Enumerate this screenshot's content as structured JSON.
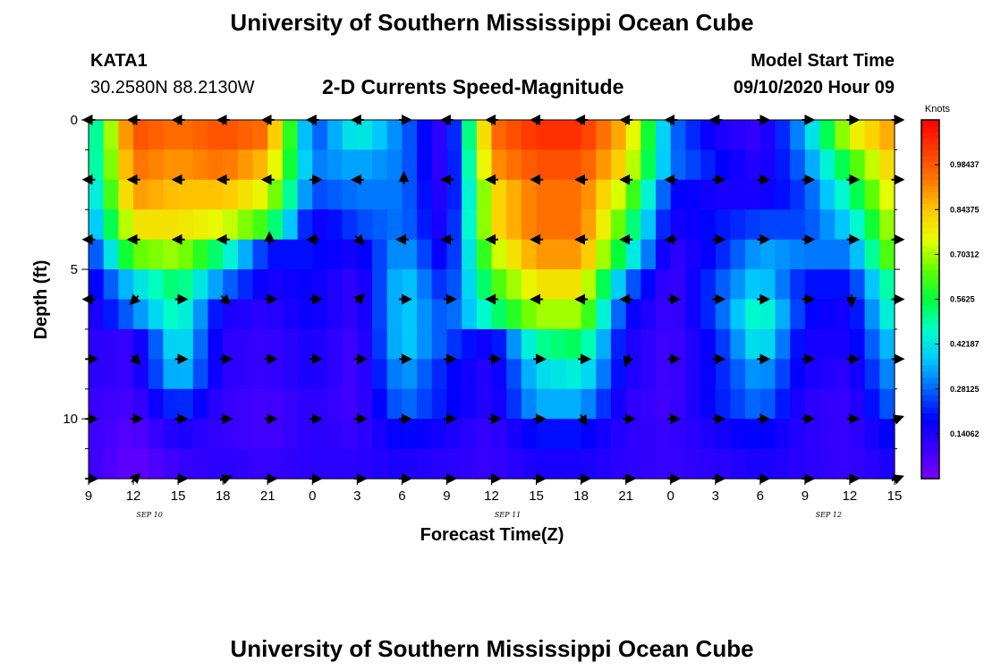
{
  "header": {
    "title": "University of Southern Mississippi Ocean Cube",
    "station": "KATA1",
    "coords": "30.2580N 88.2130W",
    "subtitle": "2-D Currents Speed-Magnitude",
    "model_start_label": "Model Start Time",
    "model_start_value": "09/10/2020 Hour 09",
    "footer_title": "University of Southern Mississippi Ocean Cube"
  },
  "colors": {
    "scale": [
      "#7a00ff",
      "#3a00ff",
      "#0000ff",
      "#0064ff",
      "#00c8ff",
      "#00ffc8",
      "#00ff3c",
      "#64ff00",
      "#e6ff00",
      "#ffc800",
      "#ff7800",
      "#ff3c00",
      "#ff0000"
    ]
  },
  "chart_data": {
    "type": "heatmap",
    "title": "2-D Currents Speed-Magnitude",
    "xlabel": "Forecast Time(Z)",
    "ylabel": "Depth (ft)",
    "x_tick_labels": [
      "9",
      "12",
      "15",
      "18",
      "21",
      "0",
      "3",
      "6",
      "9",
      "12",
      "15",
      "18",
      "21",
      "0",
      "3",
      "6",
      "9",
      "12",
      "15"
    ],
    "x_date_labels": [
      "SEP 10",
      "SEP 11",
      "SEP 12"
    ],
    "y_tick_labels": [
      "0",
      "5",
      "10"
    ],
    "ylim": [
      0,
      12
    ],
    "colorbar": {
      "unit": "Knots",
      "min": 0,
      "max": 1.125,
      "tick_labels": [
        "0.14062",
        "0.28125",
        "0.42187",
        "0.5625",
        "0.70312",
        "0.84375",
        "0.98437"
      ]
    },
    "depths_ft": [
      0.5,
      1.5,
      2.5,
      3.5,
      4.5,
      5.5,
      6.5,
      7.5,
      8.5,
      9.5,
      10.5,
      11.5
    ],
    "anchor_hours": [
      0,
      3,
      6,
      9,
      12,
      15,
      18,
      21,
      24,
      27,
      30,
      33,
      36,
      39,
      42,
      45,
      48,
      51,
      54
    ],
    "speed_knots": [
      [
        0.4,
        1.0,
        0.95,
        1.0,
        0.95,
        0.25,
        0.45,
        0.3,
        0.08,
        0.95,
        1.05,
        1.05,
        0.85,
        0.3,
        0.15,
        0.1,
        0.35,
        0.75,
        0.9
      ],
      [
        0.4,
        0.95,
        0.9,
        0.95,
        0.85,
        0.3,
        0.35,
        0.3,
        0.08,
        0.9,
        1.0,
        1.0,
        0.8,
        0.3,
        0.2,
        0.12,
        0.3,
        0.6,
        0.85
      ],
      [
        0.35,
        0.9,
        0.85,
        0.85,
        0.75,
        0.25,
        0.3,
        0.3,
        0.1,
        0.8,
        0.95,
        0.95,
        0.7,
        0.2,
        0.15,
        0.15,
        0.25,
        0.5,
        0.8
      ],
      [
        0.3,
        0.8,
        0.8,
        0.75,
        0.6,
        0.15,
        0.25,
        0.3,
        0.12,
        0.8,
        0.95,
        0.95,
        0.6,
        0.15,
        0.2,
        0.25,
        0.25,
        0.4,
        0.75
      ],
      [
        0.2,
        0.65,
        0.7,
        0.5,
        0.2,
        0.2,
        0.15,
        0.35,
        0.15,
        0.7,
        0.9,
        0.9,
        0.5,
        0.1,
        0.2,
        0.35,
        0.3,
        0.3,
        0.7
      ],
      [
        0.15,
        0.4,
        0.55,
        0.3,
        0.15,
        0.18,
        0.1,
        0.4,
        0.2,
        0.6,
        0.8,
        0.8,
        0.3,
        0.08,
        0.25,
        0.4,
        0.2,
        0.2,
        0.55
      ],
      [
        0.12,
        0.3,
        0.5,
        0.15,
        0.12,
        0.18,
        0.1,
        0.4,
        0.25,
        0.5,
        0.7,
        0.7,
        0.2,
        0.08,
        0.25,
        0.5,
        0.2,
        0.15,
        0.5
      ],
      [
        0.12,
        0.1,
        0.45,
        0.12,
        0.1,
        0.15,
        0.08,
        0.4,
        0.25,
        0.15,
        0.5,
        0.55,
        0.15,
        0.08,
        0.2,
        0.45,
        0.15,
        0.15,
        0.4
      ],
      [
        0.12,
        0.1,
        0.4,
        0.12,
        0.1,
        0.15,
        0.08,
        0.35,
        0.2,
        0.12,
        0.4,
        0.45,
        0.15,
        0.08,
        0.2,
        0.35,
        0.15,
        0.12,
        0.35
      ],
      [
        0.1,
        0.08,
        0.25,
        0.1,
        0.08,
        0.12,
        0.08,
        0.3,
        0.2,
        0.12,
        0.35,
        0.35,
        0.12,
        0.08,
        0.2,
        0.3,
        0.12,
        0.1,
        0.3
      ],
      [
        0.1,
        0.05,
        0.15,
        0.1,
        0.08,
        0.12,
        0.1,
        0.2,
        0.15,
        0.1,
        0.2,
        0.2,
        0.12,
        0.1,
        0.15,
        0.2,
        0.12,
        0.1,
        0.2
      ],
      [
        0.1,
        0.03,
        0.1,
        0.12,
        0.1,
        0.12,
        0.12,
        0.15,
        0.12,
        0.1,
        0.15,
        0.15,
        0.12,
        0.1,
        0.12,
        0.15,
        0.12,
        0.1,
        0.15
      ]
    ],
    "vector_depths_ft": [
      0,
      2,
      4,
      6,
      8,
      10,
      12
    ],
    "vector_hours": [
      0,
      3,
      6,
      9,
      12,
      15,
      18,
      21,
      24,
      27,
      30,
      33,
      36,
      39,
      42,
      45,
      48,
      51,
      54
    ],
    "vector_direction_deg": [
      [
        180,
        180,
        180,
        180,
        180,
        180,
        180,
        0,
        180,
        180,
        180,
        180,
        180,
        180,
        180,
        0,
        0,
        0,
        0
      ],
      [
        180,
        180,
        180,
        180,
        180,
        0,
        180,
        90,
        180,
        180,
        180,
        180,
        180,
        180,
        0,
        0,
        0,
        0,
        0
      ],
      [
        180,
        180,
        180,
        180,
        90,
        180,
        315,
        180,
        180,
        180,
        180,
        180,
        180,
        180,
        0,
        0,
        0,
        0,
        0
      ],
      [
        180,
        225,
        0,
        315,
        0,
        0,
        45,
        0,
        0,
        180,
        180,
        180,
        180,
        0,
        0,
        0,
        0,
        270,
        0
      ],
      [
        0,
        315,
        0,
        0,
        0,
        0,
        0,
        0,
        0,
        0,
        0,
        0,
        250,
        0,
        0,
        0,
        0,
        0,
        0
      ],
      [
        0,
        0,
        0,
        0,
        0,
        0,
        0,
        0,
        0,
        0,
        0,
        300,
        0,
        0,
        0,
        0,
        0,
        0,
        20
      ],
      [
        0,
        45,
        0,
        20,
        0,
        0,
        0,
        0,
        0,
        0,
        0,
        0,
        0,
        0,
        0,
        0,
        0,
        0,
        20
      ]
    ]
  }
}
